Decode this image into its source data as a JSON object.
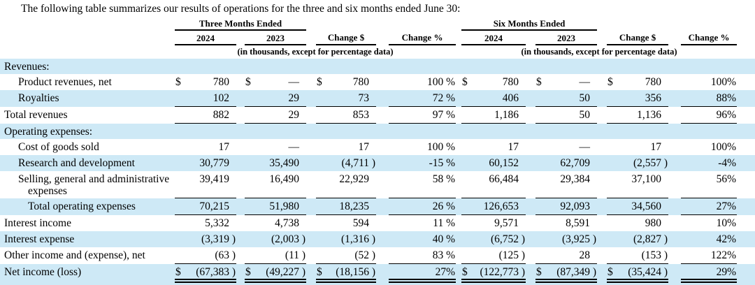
{
  "intro": "The following table summarizes our results of operations for the three and six months ended June 30:",
  "colors": {
    "row_shade": "#cee9f6",
    "rule": "#000000",
    "text": "#000000"
  },
  "table": {
    "group_headers": [
      {
        "label": "Three Months Ended",
        "subheader": "(in thousands, except for percentage data)"
      },
      {
        "label": "Six Months Ended",
        "subheader": "(in thousands, except for percentage data)"
      }
    ],
    "columns": [
      "2024",
      "2023",
      "Change $",
      "Change %",
      "2024",
      "2023",
      "Change $",
      "Change %"
    ],
    "rows": [
      {
        "label": "Revenues:",
        "indent": 0,
        "shade": true,
        "rule": "none",
        "wrap": false,
        "cells": null
      },
      {
        "label": "Product revenues, net",
        "indent": 1,
        "shade": false,
        "rule": "none",
        "wrap": false,
        "cells": [
          [
            "$",
            "780",
            ""
          ],
          [
            "$",
            "—",
            ""
          ],
          [
            "$",
            "780",
            ""
          ],
          [
            "",
            "100 %",
            ""
          ],
          [
            "$",
            "780",
            ""
          ],
          [
            "$",
            "—",
            ""
          ],
          [
            "$",
            "780",
            ""
          ],
          [
            "",
            "100%",
            ""
          ]
        ]
      },
      {
        "label": "Royalties",
        "indent": 1,
        "shade": true,
        "rule": "single",
        "wrap": false,
        "cells": [
          [
            "",
            "102",
            ""
          ],
          [
            "",
            "29",
            ""
          ],
          [
            "",
            "73",
            ""
          ],
          [
            "",
            "72 %",
            ""
          ],
          [
            "",
            "406",
            ""
          ],
          [
            "",
            "50",
            ""
          ],
          [
            "",
            "356",
            ""
          ],
          [
            "",
            "88%",
            ""
          ]
        ]
      },
      {
        "label": "Total revenues",
        "indent": 0,
        "shade": false,
        "rule": "single",
        "wrap": false,
        "cells": [
          [
            "",
            "882",
            ""
          ],
          [
            "",
            "29",
            ""
          ],
          [
            "",
            "853",
            ""
          ],
          [
            "",
            "97 %",
            ""
          ],
          [
            "",
            "1,186",
            ""
          ],
          [
            "",
            "50",
            ""
          ],
          [
            "",
            "1,136",
            ""
          ],
          [
            "",
            "96%",
            ""
          ]
        ]
      },
      {
        "label": "Operating expenses:",
        "indent": 0,
        "shade": true,
        "rule": "none",
        "wrap": false,
        "cells": null
      },
      {
        "label": "Cost of goods sold",
        "indent": 1,
        "shade": false,
        "rule": "none",
        "wrap": false,
        "cells": [
          [
            "",
            "17",
            ""
          ],
          [
            "",
            "—",
            ""
          ],
          [
            "",
            "17",
            ""
          ],
          [
            "",
            "100 %",
            ""
          ],
          [
            "",
            "17",
            ""
          ],
          [
            "",
            "—",
            ""
          ],
          [
            "",
            "17",
            ""
          ],
          [
            "",
            "100%",
            ""
          ]
        ]
      },
      {
        "label": "Research and development",
        "indent": 1,
        "shade": true,
        "rule": "none",
        "wrap": false,
        "cells": [
          [
            "",
            "30,779",
            ""
          ],
          [
            "",
            "35,490",
            ""
          ],
          [
            "",
            "(4,711",
            ")"
          ],
          [
            "",
            "-15 %",
            ""
          ],
          [
            "",
            "60,152",
            ""
          ],
          [
            "",
            "62,709",
            ""
          ],
          [
            "",
            "(2,557",
            ")"
          ],
          [
            "",
            "-4%",
            ""
          ]
        ]
      },
      {
        "label": "Selling, general and administrative expenses",
        "indent": 1,
        "shade": false,
        "rule": "single",
        "wrap": true,
        "cells": [
          [
            "",
            "39,419",
            ""
          ],
          [
            "",
            "16,490",
            ""
          ],
          [
            "",
            "22,929",
            ""
          ],
          [
            "",
            "58 %",
            ""
          ],
          [
            "",
            "66,484",
            ""
          ],
          [
            "",
            "29,384",
            ""
          ],
          [
            "",
            "37,100",
            ""
          ],
          [
            "",
            "56%",
            ""
          ]
        ]
      },
      {
        "label": "Total operating expenses",
        "indent": 2,
        "shade": true,
        "rule": "single",
        "wrap": false,
        "cells": [
          [
            "",
            "70,215",
            ""
          ],
          [
            "",
            "51,980",
            ""
          ],
          [
            "",
            "18,235",
            ""
          ],
          [
            "",
            "26 %",
            ""
          ],
          [
            "",
            "126,653",
            ""
          ],
          [
            "",
            "92,093",
            ""
          ],
          [
            "",
            "34,560",
            ""
          ],
          [
            "",
            "27%",
            ""
          ]
        ]
      },
      {
        "label": "Interest income",
        "indent": 0,
        "shade": false,
        "rule": "none",
        "wrap": false,
        "cells": [
          [
            "",
            "5,332",
            ""
          ],
          [
            "",
            "4,738",
            ""
          ],
          [
            "",
            "594",
            ""
          ],
          [
            "",
            "11 %",
            ""
          ],
          [
            "",
            "9,571",
            ""
          ],
          [
            "",
            "8,591",
            ""
          ],
          [
            "",
            "980",
            ""
          ],
          [
            "",
            "10%",
            ""
          ]
        ]
      },
      {
        "label": "Interest expense",
        "indent": 0,
        "shade": true,
        "rule": "none",
        "wrap": false,
        "cells": [
          [
            "",
            "(3,319",
            ")"
          ],
          [
            "",
            "(2,003",
            ")"
          ],
          [
            "",
            "(1,316",
            ")"
          ],
          [
            "",
            "40 %",
            ""
          ],
          [
            "",
            "(6,752",
            ")"
          ],
          [
            "",
            "(3,925",
            ")"
          ],
          [
            "",
            "(2,827",
            ")"
          ],
          [
            "",
            "42%",
            ""
          ]
        ]
      },
      {
        "label": "Other income and (expense), net",
        "indent": 0,
        "shade": false,
        "rule": "single",
        "wrap": false,
        "cells": [
          [
            "",
            "(63",
            ")"
          ],
          [
            "",
            "(11",
            ")"
          ],
          [
            "",
            "(52",
            ")"
          ],
          [
            "",
            "83 %",
            ""
          ],
          [
            "",
            "(125",
            ")"
          ],
          [
            "",
            "28",
            ""
          ],
          [
            "",
            "(153",
            ")"
          ],
          [
            "",
            "122%",
            ""
          ]
        ]
      },
      {
        "label": "Net income (loss)",
        "indent": 0,
        "shade": true,
        "rule": "double",
        "wrap": false,
        "cells": [
          [
            "$",
            "(67,383",
            ")"
          ],
          [
            "$",
            "(49,227",
            ")"
          ],
          [
            "$",
            "(18,156",
            ")"
          ],
          [
            "",
            "27%",
            ""
          ],
          [
            "$",
            "(122,773",
            ")"
          ],
          [
            "$",
            "(87,349",
            ")"
          ],
          [
            "$",
            "(35,424",
            ")"
          ],
          [
            "",
            "29%",
            ""
          ]
        ]
      }
    ]
  }
}
